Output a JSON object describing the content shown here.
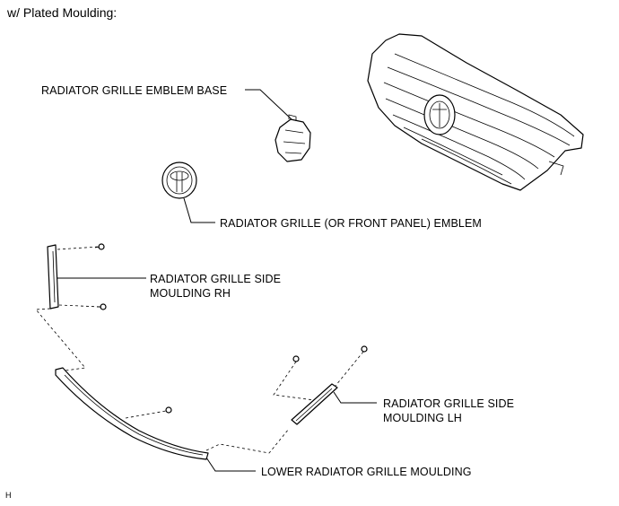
{
  "header": {
    "title": "w/ Plated Moulding:"
  },
  "labels": {
    "emblem_base": "RADIATOR GRILLE EMBLEM BASE",
    "front_emblem": "RADIATOR GRILLE (OR FRONT PANEL) EMBLEM",
    "side_moulding_rh_line1": "RADIATOR GRILLE SIDE",
    "side_moulding_rh_line2": "MOULDING RH",
    "side_moulding_lh_line1": "RADIATOR GRILLE SIDE",
    "side_moulding_lh_line2": "MOULDING LH",
    "lower_moulding": "LOWER RADIATOR GRILLE MOULDING"
  },
  "footer": {
    "code": "H"
  }
}
